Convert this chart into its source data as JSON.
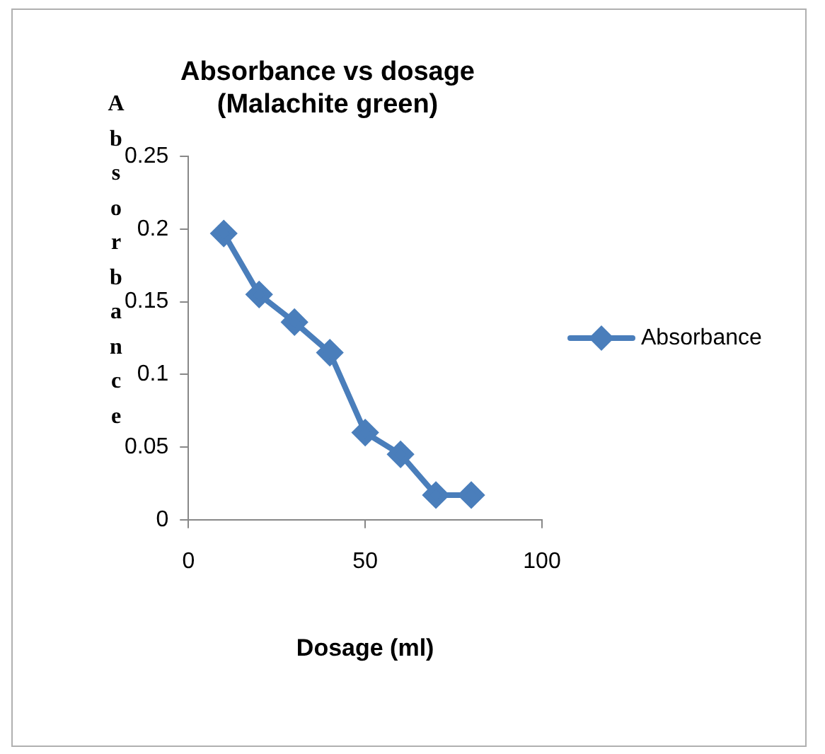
{
  "chart_data": {
    "type": "line",
    "title": "Absorbance vs dosage\n(Malachite green)",
    "xlabel": "Dosage (ml)",
    "ylabel": "Absorbance",
    "x": [
      10,
      20,
      30,
      40,
      50,
      60,
      70,
      80
    ],
    "series": [
      {
        "name": "Absorbance",
        "color": "#4a7ebb",
        "values": [
          0.197,
          0.155,
          0.136,
          0.115,
          0.06,
          0.045,
          0.017,
          0.017
        ]
      }
    ],
    "xlim": [
      0,
      100
    ],
    "xticks": [
      0,
      50,
      100
    ],
    "ylim": [
      0,
      0.25
    ],
    "yticks": [
      0,
      0.05,
      0.1,
      0.15,
      0.2,
      0.25
    ],
    "grid": false,
    "legend": "right",
    "marker": "diamond",
    "line_style": "solid"
  }
}
